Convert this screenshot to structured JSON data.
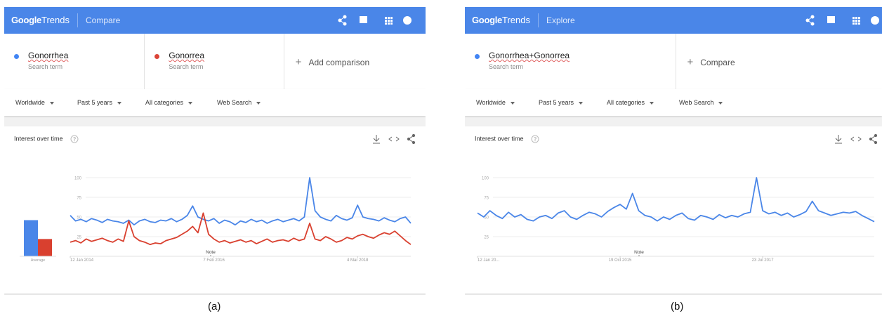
{
  "panels": [
    {
      "header": {
        "brand": "Google",
        "product": "Trends",
        "section": "Compare"
      },
      "terms": [
        {
          "name": "Gonorrhea",
          "sub": "Search term",
          "color": "#4285f4"
        },
        {
          "name": "Gonorrea",
          "sub": "Search term",
          "color": "#db4437"
        }
      ],
      "add": "Add comparison",
      "filters": [
        "Worldwide",
        "Past 5 years",
        "All categories",
        "Web Search"
      ],
      "card_title": "Interest over time",
      "chart": {
        "type": "line",
        "ylim": [
          0,
          100
        ],
        "yticks": [
          25,
          50,
          75,
          100
        ],
        "xlim": [
          0,
          64
        ],
        "xticks": [
          {
            "value": 0,
            "label": "12 Jan 2014"
          },
          {
            "value": 27,
            "label": "7 Feb 2016"
          },
          {
            "value": 54,
            "label": "4 Mar 2018"
          }
        ],
        "grid": true,
        "note": "Note",
        "average_label": "Average",
        "series": [
          {
            "name": "Gonorrhea",
            "color": "#4a86e8",
            "average": 46,
            "values": [
              52,
              45,
              47,
              44,
              48,
              46,
              43,
              47,
              45,
              44,
              42,
              46,
              40,
              45,
              47,
              44,
              43,
              46,
              45,
              48,
              44,
              47,
              52,
              64,
              50,
              47,
              45,
              48,
              42,
              46,
              44,
              40,
              45,
              43,
              47,
              44,
              46,
              42,
              45,
              47,
              44,
              46,
              48,
              45,
              50,
              100,
              58,
              50,
              47,
              45,
              52,
              48,
              46,
              49,
              65,
              50,
              48,
              47,
              45,
              49,
              46,
              44,
              48,
              50,
              42
            ]
          },
          {
            "name": "Gonorrea",
            "color": "#d9402f",
            "average": 22,
            "values": [
              18,
              20,
              17,
              22,
              19,
              21,
              23,
              20,
              18,
              22,
              19,
              45,
              25,
              20,
              18,
              15,
              17,
              16,
              20,
              22,
              24,
              28,
              32,
              38,
              30,
              55,
              28,
              22,
              18,
              20,
              17,
              19,
              21,
              18,
              20,
              16,
              19,
              22,
              18,
              20,
              21,
              19,
              23,
              20,
              22,
              42,
              22,
              20,
              25,
              22,
              18,
              20,
              24,
              22,
              26,
              28,
              25,
              23,
              27,
              30,
              28,
              32,
              26,
              20,
              15
            ]
          }
        ]
      },
      "caption": "(a)"
    },
    {
      "header": {
        "brand": "Google",
        "product": "Trends",
        "section": "Explore"
      },
      "terms": [
        {
          "name": "Gonorrhea+Gonorrea",
          "sub": "Search term",
          "color": "#4285f4"
        }
      ],
      "add": "Compare",
      "filters": [
        "Worldwide",
        "Past 5 years",
        "All categories",
        "Web Search"
      ],
      "card_title": "Interest over time",
      "chart": {
        "type": "line",
        "ylim": [
          0,
          100
        ],
        "yticks": [
          25,
          50,
          75,
          100
        ],
        "xlim": [
          0,
          64
        ],
        "xticks": [
          {
            "value": 0,
            "label": "12 Jan 20..."
          },
          {
            "value": 23,
            "label": "19 Oct 2015"
          },
          {
            "value": 46,
            "label": "23 Jul 2017"
          }
        ],
        "grid": true,
        "note": "Note",
        "series": [
          {
            "name": "Gonorrhea+Gonorrea",
            "color": "#4a86e8",
            "values": [
              55,
              50,
              58,
              52,
              48,
              56,
              50,
              53,
              47,
              45,
              50,
              52,
              48,
              55,
              58,
              50,
              47,
              52,
              56,
              54,
              50,
              57,
              62,
              66,
              60,
              80,
              58,
              52,
              50,
              45,
              50,
              47,
              52,
              55,
              48,
              46,
              52,
              50,
              47,
              53,
              49,
              52,
              50,
              54,
              56,
              100,
              58,
              54,
              56,
              52,
              55,
              50,
              53,
              57,
              70,
              58,
              55,
              52,
              54,
              56,
              55,
              57,
              52,
              48,
              44
            ]
          }
        ]
      },
      "caption": "(b)"
    }
  ]
}
